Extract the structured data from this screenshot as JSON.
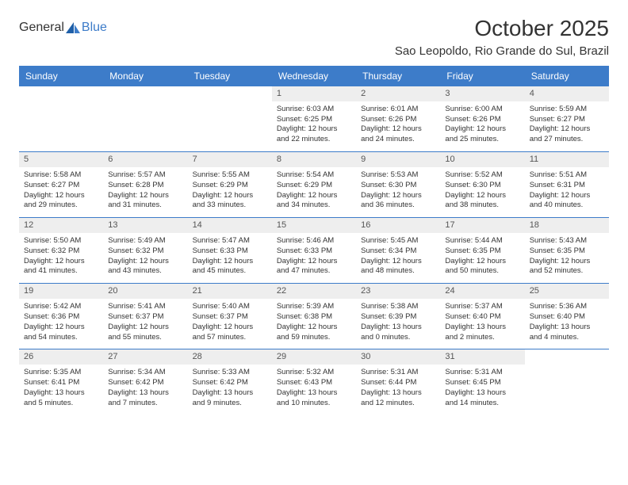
{
  "logo": {
    "textGeneral": "General",
    "textBlue": "Blue"
  },
  "title": "October 2025",
  "location": "Sao Leopoldo, Rio Grande do Sul, Brazil",
  "colors": {
    "headerBg": "#3d7cc9",
    "headerText": "#ffffff",
    "dayNumBg": "#eeeeee",
    "dayNumText": "#555555",
    "bodyText": "#333333",
    "rowBorder": "#3d7cc9",
    "logoGray": "#6b6b6b",
    "logoBlue": "#3d7cc9",
    "pageBg": "#ffffff"
  },
  "typography": {
    "titleFontSize": 28,
    "locationFontSize": 15,
    "dayHeaderFontSize": 12,
    "cellFontSize": 9.5,
    "dayNumFontSize": 11
  },
  "dayHeaders": [
    "Sunday",
    "Monday",
    "Tuesday",
    "Wednesday",
    "Thursday",
    "Friday",
    "Saturday"
  ],
  "weeks": [
    [
      null,
      null,
      null,
      {
        "n": "1",
        "sr": "Sunrise: 6:03 AM",
        "ss": "Sunset: 6:25 PM",
        "d1": "Daylight: 12 hours",
        "d2": "and 22 minutes."
      },
      {
        "n": "2",
        "sr": "Sunrise: 6:01 AM",
        "ss": "Sunset: 6:26 PM",
        "d1": "Daylight: 12 hours",
        "d2": "and 24 minutes."
      },
      {
        "n": "3",
        "sr": "Sunrise: 6:00 AM",
        "ss": "Sunset: 6:26 PM",
        "d1": "Daylight: 12 hours",
        "d2": "and 25 minutes."
      },
      {
        "n": "4",
        "sr": "Sunrise: 5:59 AM",
        "ss": "Sunset: 6:27 PM",
        "d1": "Daylight: 12 hours",
        "d2": "and 27 minutes."
      }
    ],
    [
      {
        "n": "5",
        "sr": "Sunrise: 5:58 AM",
        "ss": "Sunset: 6:27 PM",
        "d1": "Daylight: 12 hours",
        "d2": "and 29 minutes."
      },
      {
        "n": "6",
        "sr": "Sunrise: 5:57 AM",
        "ss": "Sunset: 6:28 PM",
        "d1": "Daylight: 12 hours",
        "d2": "and 31 minutes."
      },
      {
        "n": "7",
        "sr": "Sunrise: 5:55 AM",
        "ss": "Sunset: 6:29 PM",
        "d1": "Daylight: 12 hours",
        "d2": "and 33 minutes."
      },
      {
        "n": "8",
        "sr": "Sunrise: 5:54 AM",
        "ss": "Sunset: 6:29 PM",
        "d1": "Daylight: 12 hours",
        "d2": "and 34 minutes."
      },
      {
        "n": "9",
        "sr": "Sunrise: 5:53 AM",
        "ss": "Sunset: 6:30 PM",
        "d1": "Daylight: 12 hours",
        "d2": "and 36 minutes."
      },
      {
        "n": "10",
        "sr": "Sunrise: 5:52 AM",
        "ss": "Sunset: 6:30 PM",
        "d1": "Daylight: 12 hours",
        "d2": "and 38 minutes."
      },
      {
        "n": "11",
        "sr": "Sunrise: 5:51 AM",
        "ss": "Sunset: 6:31 PM",
        "d1": "Daylight: 12 hours",
        "d2": "and 40 minutes."
      }
    ],
    [
      {
        "n": "12",
        "sr": "Sunrise: 5:50 AM",
        "ss": "Sunset: 6:32 PM",
        "d1": "Daylight: 12 hours",
        "d2": "and 41 minutes."
      },
      {
        "n": "13",
        "sr": "Sunrise: 5:49 AM",
        "ss": "Sunset: 6:32 PM",
        "d1": "Daylight: 12 hours",
        "d2": "and 43 minutes."
      },
      {
        "n": "14",
        "sr": "Sunrise: 5:47 AM",
        "ss": "Sunset: 6:33 PM",
        "d1": "Daylight: 12 hours",
        "d2": "and 45 minutes."
      },
      {
        "n": "15",
        "sr": "Sunrise: 5:46 AM",
        "ss": "Sunset: 6:33 PM",
        "d1": "Daylight: 12 hours",
        "d2": "and 47 minutes."
      },
      {
        "n": "16",
        "sr": "Sunrise: 5:45 AM",
        "ss": "Sunset: 6:34 PM",
        "d1": "Daylight: 12 hours",
        "d2": "and 48 minutes."
      },
      {
        "n": "17",
        "sr": "Sunrise: 5:44 AM",
        "ss": "Sunset: 6:35 PM",
        "d1": "Daylight: 12 hours",
        "d2": "and 50 minutes."
      },
      {
        "n": "18",
        "sr": "Sunrise: 5:43 AM",
        "ss": "Sunset: 6:35 PM",
        "d1": "Daylight: 12 hours",
        "d2": "and 52 minutes."
      }
    ],
    [
      {
        "n": "19",
        "sr": "Sunrise: 5:42 AM",
        "ss": "Sunset: 6:36 PM",
        "d1": "Daylight: 12 hours",
        "d2": "and 54 minutes."
      },
      {
        "n": "20",
        "sr": "Sunrise: 5:41 AM",
        "ss": "Sunset: 6:37 PM",
        "d1": "Daylight: 12 hours",
        "d2": "and 55 minutes."
      },
      {
        "n": "21",
        "sr": "Sunrise: 5:40 AM",
        "ss": "Sunset: 6:37 PM",
        "d1": "Daylight: 12 hours",
        "d2": "and 57 minutes."
      },
      {
        "n": "22",
        "sr": "Sunrise: 5:39 AM",
        "ss": "Sunset: 6:38 PM",
        "d1": "Daylight: 12 hours",
        "d2": "and 59 minutes."
      },
      {
        "n": "23",
        "sr": "Sunrise: 5:38 AM",
        "ss": "Sunset: 6:39 PM",
        "d1": "Daylight: 13 hours",
        "d2": "and 0 minutes."
      },
      {
        "n": "24",
        "sr": "Sunrise: 5:37 AM",
        "ss": "Sunset: 6:40 PM",
        "d1": "Daylight: 13 hours",
        "d2": "and 2 minutes."
      },
      {
        "n": "25",
        "sr": "Sunrise: 5:36 AM",
        "ss": "Sunset: 6:40 PM",
        "d1": "Daylight: 13 hours",
        "d2": "and 4 minutes."
      }
    ],
    [
      {
        "n": "26",
        "sr": "Sunrise: 5:35 AM",
        "ss": "Sunset: 6:41 PM",
        "d1": "Daylight: 13 hours",
        "d2": "and 5 minutes."
      },
      {
        "n": "27",
        "sr": "Sunrise: 5:34 AM",
        "ss": "Sunset: 6:42 PM",
        "d1": "Daylight: 13 hours",
        "d2": "and 7 minutes."
      },
      {
        "n": "28",
        "sr": "Sunrise: 5:33 AM",
        "ss": "Sunset: 6:42 PM",
        "d1": "Daylight: 13 hours",
        "d2": "and 9 minutes."
      },
      {
        "n": "29",
        "sr": "Sunrise: 5:32 AM",
        "ss": "Sunset: 6:43 PM",
        "d1": "Daylight: 13 hours",
        "d2": "and 10 minutes."
      },
      {
        "n": "30",
        "sr": "Sunrise: 5:31 AM",
        "ss": "Sunset: 6:44 PM",
        "d1": "Daylight: 13 hours",
        "d2": "and 12 minutes."
      },
      {
        "n": "31",
        "sr": "Sunrise: 5:31 AM",
        "ss": "Sunset: 6:45 PM",
        "d1": "Daylight: 13 hours",
        "d2": "and 14 minutes."
      },
      null
    ]
  ]
}
